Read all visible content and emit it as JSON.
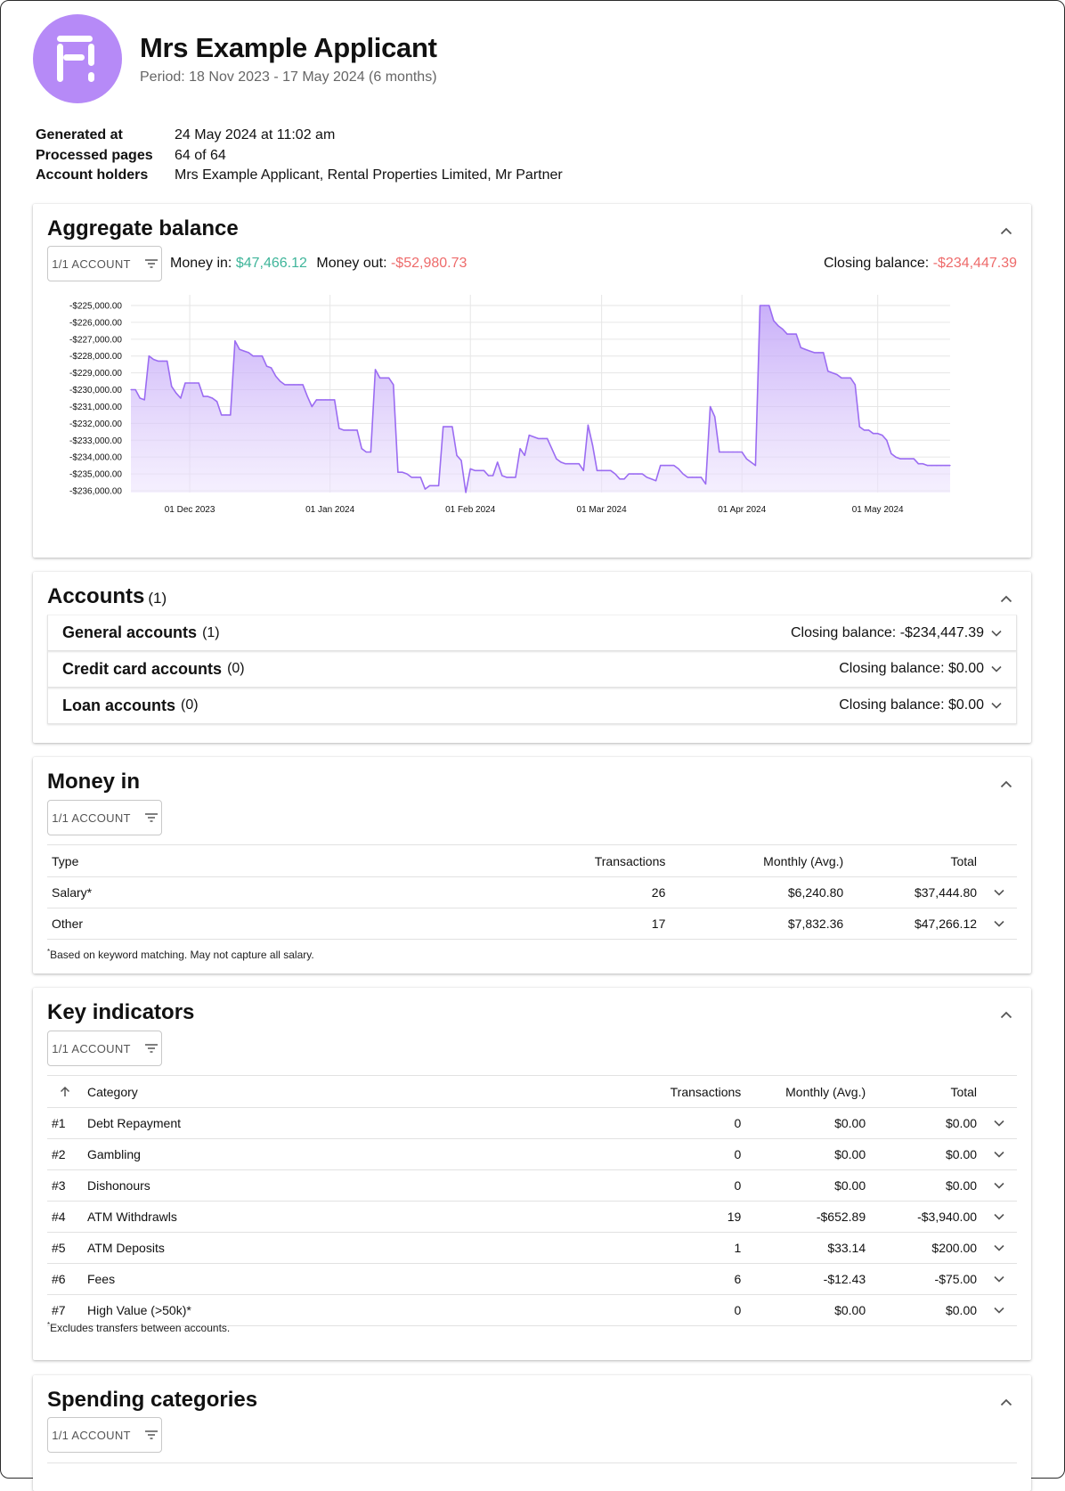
{
  "header": {
    "name": "Mrs Example Applicant",
    "period": "Period: 18 Nov 2023 - 17 May 2024 (6 months)"
  },
  "meta": [
    {
      "key": "Generated at",
      "value": "24 May 2024 at 11:02 am"
    },
    {
      "key": "Processed pages",
      "value": "64 of 64"
    },
    {
      "key": "Account holders",
      "value": "Mrs Example Applicant, Rental Properties Limited, Mr Partner"
    }
  ],
  "aggregate": {
    "title": "Aggregate balance",
    "filter_label": "1/1 ACCOUNT",
    "money_in_label": "Money in:",
    "money_in_value": "$47,466.12",
    "money_out_label": "Money out:",
    "money_out_value": "-$52,980.73",
    "closing_label": "Closing balance:",
    "closing_value": "-$234,447.39"
  },
  "chart_data": {
    "type": "area",
    "title": "",
    "xlabel": "",
    "ylabel": "",
    "ylim": [
      -236000,
      -225000
    ],
    "grid": true,
    "color": "#9b6cf2",
    "x_ticks": [
      {
        "date": "2023-12-01",
        "label": "01 Dec 2023"
      },
      {
        "date": "2024-01-01",
        "label": "01 Jan 2024"
      },
      {
        "date": "2024-02-01",
        "label": "01 Feb 2024"
      },
      {
        "date": "2024-03-01",
        "label": "01 Mar 2024"
      },
      {
        "date": "2024-04-01",
        "label": "01 Apr 2024"
      },
      {
        "date": "2024-05-01",
        "label": "01 May 2024"
      }
    ],
    "y_ticks": [
      "-$225,000.00",
      "-$226,000.00",
      "-$227,000.00",
      "-$228,000.00",
      "-$229,000.00",
      "-$230,000.00",
      "-$231,000.00",
      "-$232,000.00",
      "-$233,000.00",
      "-$234,000.00",
      "-$235,000.00",
      "-$236,000.00"
    ],
    "y_tick_values": [
      -225000,
      -226000,
      -227000,
      -228000,
      -229000,
      -230000,
      -231000,
      -232000,
      -233000,
      -234000,
      -235000,
      -236000
    ],
    "x_range": [
      "2023-11-18",
      "2024-05-17"
    ],
    "points": [
      [
        "2023-11-18",
        -230000
      ],
      [
        "2023-11-19",
        -230000
      ],
      [
        "2023-11-20",
        -230500
      ],
      [
        "2023-11-21",
        -230600
      ],
      [
        "2023-11-22",
        -228000
      ],
      [
        "2023-11-23",
        -228200
      ],
      [
        "2023-11-24",
        -228300
      ],
      [
        "2023-11-25",
        -228300
      ],
      [
        "2023-11-26",
        -228300
      ],
      [
        "2023-11-27",
        -229800
      ],
      [
        "2023-11-28",
        -230200
      ],
      [
        "2023-11-29",
        -230500
      ],
      [
        "2023-11-30",
        -229600
      ],
      [
        "2023-12-01",
        -229600
      ],
      [
        "2023-12-02",
        -229600
      ],
      [
        "2023-12-03",
        -229600
      ],
      [
        "2023-12-04",
        -230400
      ],
      [
        "2023-12-05",
        -230400
      ],
      [
        "2023-12-06",
        -230500
      ],
      [
        "2023-12-07",
        -230700
      ],
      [
        "2023-12-08",
        -231500
      ],
      [
        "2023-12-09",
        -231500
      ],
      [
        "2023-12-10",
        -231500
      ],
      [
        "2023-12-11",
        -227100
      ],
      [
        "2023-12-12",
        -227600
      ],
      [
        "2023-12-13",
        -227700
      ],
      [
        "2023-12-14",
        -227800
      ],
      [
        "2023-12-15",
        -228000
      ],
      [
        "2023-12-16",
        -228000
      ],
      [
        "2023-12-17",
        -228000
      ],
      [
        "2023-12-18",
        -228600
      ],
      [
        "2023-12-19",
        -228700
      ],
      [
        "2023-12-20",
        -229200
      ],
      [
        "2023-12-21",
        -229500
      ],
      [
        "2023-12-22",
        -229700
      ],
      [
        "2023-12-23",
        -229700
      ],
      [
        "2023-12-24",
        -229700
      ],
      [
        "2023-12-25",
        -229700
      ],
      [
        "2023-12-26",
        -229700
      ],
      [
        "2023-12-27",
        -230400
      ],
      [
        "2023-12-28",
        -231000
      ],
      [
        "2023-12-29",
        -230600
      ],
      [
        "2023-12-30",
        -230600
      ],
      [
        "2023-12-31",
        -230600
      ],
      [
        "2024-01-01",
        -230600
      ],
      [
        "2024-01-02",
        -230600
      ],
      [
        "2024-01-03",
        -232300
      ],
      [
        "2024-01-04",
        -232400
      ],
      [
        "2024-01-05",
        -232400
      ],
      [
        "2024-01-06",
        -232400
      ],
      [
        "2024-01-07",
        -232400
      ],
      [
        "2024-01-08",
        -233500
      ],
      [
        "2024-01-09",
        -233700
      ],
      [
        "2024-01-10",
        -233700
      ],
      [
        "2024-01-11",
        -228800
      ],
      [
        "2024-01-12",
        -229300
      ],
      [
        "2024-01-13",
        -229300
      ],
      [
        "2024-01-14",
        -229300
      ],
      [
        "2024-01-15",
        -229700
      ],
      [
        "2024-01-16",
        -234900
      ],
      [
        "2024-01-17",
        -234900
      ],
      [
        "2024-01-18",
        -235000
      ],
      [
        "2024-01-19",
        -235200
      ],
      [
        "2024-01-20",
        -235200
      ],
      [
        "2024-01-21",
        -235200
      ],
      [
        "2024-01-22",
        -235900
      ],
      [
        "2024-01-23",
        -235700
      ],
      [
        "2024-01-24",
        -235700
      ],
      [
        "2024-01-25",
        -235700
      ],
      [
        "2024-01-26",
        -232200
      ],
      [
        "2024-01-27",
        -232200
      ],
      [
        "2024-01-28",
        -232200
      ],
      [
        "2024-01-29",
        -233900
      ],
      [
        "2024-01-30",
        -234200
      ],
      [
        "2024-01-31",
        -236100
      ],
      [
        "2024-02-01",
        -234700
      ],
      [
        "2024-02-02",
        -234800
      ],
      [
        "2024-02-03",
        -234800
      ],
      [
        "2024-02-04",
        -234800
      ],
      [
        "2024-02-05",
        -235100
      ],
      [
        "2024-02-06",
        -235100
      ],
      [
        "2024-02-07",
        -234300
      ],
      [
        "2024-02-08",
        -235100
      ],
      [
        "2024-02-09",
        -235200
      ],
      [
        "2024-02-10",
        -235200
      ],
      [
        "2024-02-11",
        -235200
      ],
      [
        "2024-02-12",
        -233500
      ],
      [
        "2024-02-13",
        -233900
      ],
      [
        "2024-02-14",
        -232700
      ],
      [
        "2024-02-15",
        -232800
      ],
      [
        "2024-02-16",
        -232900
      ],
      [
        "2024-02-17",
        -232900
      ],
      [
        "2024-02-18",
        -232900
      ],
      [
        "2024-02-19",
        -233500
      ],
      [
        "2024-02-20",
        -234100
      ],
      [
        "2024-02-21",
        -234300
      ],
      [
        "2024-02-22",
        -234400
      ],
      [
        "2024-02-23",
        -234400
      ],
      [
        "2024-02-24",
        -234400
      ],
      [
        "2024-02-25",
        -234400
      ],
      [
        "2024-02-26",
        -234800
      ],
      [
        "2024-02-27",
        -232100
      ],
      [
        "2024-02-28",
        -233300
      ],
      [
        "2024-02-29",
        -234800
      ],
      [
        "2024-03-01",
        -234800
      ],
      [
        "2024-03-02",
        -234800
      ],
      [
        "2024-03-03",
        -234800
      ],
      [
        "2024-03-04",
        -235000
      ],
      [
        "2024-03-05",
        -235300
      ],
      [
        "2024-03-06",
        -235300
      ],
      [
        "2024-03-07",
        -235000
      ],
      [
        "2024-03-08",
        -235000
      ],
      [
        "2024-03-09",
        -235000
      ],
      [
        "2024-03-10",
        -235000
      ],
      [
        "2024-03-11",
        -235200
      ],
      [
        "2024-03-12",
        -235300
      ],
      [
        "2024-03-13",
        -235400
      ],
      [
        "2024-03-14",
        -234500
      ],
      [
        "2024-03-15",
        -234500
      ],
      [
        "2024-03-16",
        -234500
      ],
      [
        "2024-03-17",
        -234500
      ],
      [
        "2024-03-18",
        -234700
      ],
      [
        "2024-03-19",
        -235000
      ],
      [
        "2024-03-20",
        -235200
      ],
      [
        "2024-03-21",
        -235200
      ],
      [
        "2024-03-22",
        -235200
      ],
      [
        "2024-03-23",
        -235200
      ],
      [
        "2024-03-24",
        -235600
      ],
      [
        "2024-03-25",
        -231000
      ],
      [
        "2024-03-26",
        -231600
      ],
      [
        "2024-03-27",
        -233700
      ],
      [
        "2024-03-28",
        -233700
      ],
      [
        "2024-03-29",
        -233700
      ],
      [
        "2024-03-30",
        -233700
      ],
      [
        "2024-03-31",
        -233700
      ],
      [
        "2024-04-01",
        -233700
      ],
      [
        "2024-04-02",
        -234100
      ],
      [
        "2024-04-03",
        -234300
      ],
      [
        "2024-04-04",
        -234500
      ],
      [
        "2024-04-05",
        -225000
      ],
      [
        "2024-04-06",
        -225000
      ],
      [
        "2024-04-07",
        -225000
      ],
      [
        "2024-04-08",
        -225900
      ],
      [
        "2024-04-09",
        -226200
      ],
      [
        "2024-04-10",
        -226400
      ],
      [
        "2024-04-11",
        -226700
      ],
      [
        "2024-04-12",
        -226700
      ],
      [
        "2024-04-13",
        -226700
      ],
      [
        "2024-04-14",
        -227500
      ],
      [
        "2024-04-15",
        -227600
      ],
      [
        "2024-04-16",
        -227700
      ],
      [
        "2024-04-17",
        -227800
      ],
      [
        "2024-04-18",
        -227800
      ],
      [
        "2024-04-19",
        -227800
      ],
      [
        "2024-04-20",
        -228900
      ],
      [
        "2024-04-21",
        -229000
      ],
      [
        "2024-04-22",
        -229100
      ],
      [
        "2024-04-23",
        -229300
      ],
      [
        "2024-04-24",
        -229300
      ],
      [
        "2024-04-25",
        -229300
      ],
      [
        "2024-04-26",
        -229700
      ],
      [
        "2024-04-27",
        -232200
      ],
      [
        "2024-04-28",
        -232400
      ],
      [
        "2024-04-29",
        -232400
      ],
      [
        "2024-04-30",
        -232600
      ],
      [
        "2024-05-01",
        -232600
      ],
      [
        "2024-05-02",
        -232700
      ],
      [
        "2024-05-03",
        -233000
      ],
      [
        "2024-05-04",
        -233800
      ],
      [
        "2024-05-05",
        -234000
      ],
      [
        "2024-05-06",
        -234100
      ],
      [
        "2024-05-07",
        -234100
      ],
      [
        "2024-05-08",
        -234100
      ],
      [
        "2024-05-09",
        -234100
      ],
      [
        "2024-05-10",
        -234400
      ],
      [
        "2024-05-11",
        -234400
      ],
      [
        "2024-05-12",
        -234500
      ],
      [
        "2024-05-13",
        -234500
      ],
      [
        "2024-05-14",
        -234500
      ],
      [
        "2024-05-15",
        -234500
      ],
      [
        "2024-05-16",
        -234500
      ],
      [
        "2024-05-17",
        -234500
      ]
    ]
  },
  "accounts": {
    "title": "Accounts",
    "count": "(1)",
    "rows": [
      {
        "name": "General accounts",
        "count": "(1)",
        "closing": "Closing balance: -$234,447.39"
      },
      {
        "name": "Credit card accounts",
        "count": "(0)",
        "closing": "Closing balance: $0.00"
      },
      {
        "name": "Loan accounts",
        "count": "(0)",
        "closing": "Closing balance: $0.00"
      }
    ]
  },
  "money_in": {
    "title": "Money in",
    "filter_label": "1/1 ACCOUNT",
    "columns": [
      "Type",
      "Transactions",
      "Monthly (Avg.)",
      "Total"
    ],
    "rows": [
      {
        "type": "Salary*",
        "transactions": "26",
        "monthly": "$6,240.80",
        "total": "$37,444.80"
      },
      {
        "type": "Other",
        "transactions": "17",
        "monthly": "$7,832.36",
        "total": "$47,266.12"
      }
    ],
    "footnote_mark": "*",
    "footnote": "Based on keyword matching. May not capture all salary."
  },
  "key_indicators": {
    "title": "Key indicators",
    "filter_label": "1/1 ACCOUNT",
    "columns": [
      "Category",
      "Transactions",
      "Monthly (Avg.)",
      "Total"
    ],
    "rows": [
      {
        "rank": "#1",
        "category": "Debt Repayment",
        "transactions": "0",
        "monthly": "$0.00",
        "total": "$0.00"
      },
      {
        "rank": "#2",
        "category": "Gambling",
        "transactions": "0",
        "monthly": "$0.00",
        "total": "$0.00"
      },
      {
        "rank": "#3",
        "category": "Dishonours",
        "transactions": "0",
        "monthly": "$0.00",
        "total": "$0.00"
      },
      {
        "rank": "#4",
        "category": "ATM Withdrawls",
        "transactions": "19",
        "monthly": "-$652.89",
        "total": "-$3,940.00"
      },
      {
        "rank": "#5",
        "category": "ATM Deposits",
        "transactions": "1",
        "monthly": "$33.14",
        "total": "$200.00"
      },
      {
        "rank": "#6",
        "category": "Fees",
        "transactions": "6",
        "monthly": "-$12.43",
        "total": "-$75.00"
      },
      {
        "rank": "#7",
        "category": "High Value (>50k)*",
        "transactions": "0",
        "monthly": "$0.00",
        "total": "$0.00"
      }
    ],
    "footnote_mark": "*",
    "footnote": "Excludes transfers between accounts."
  },
  "spending": {
    "title": "Spending categories",
    "filter_label": "1/1 ACCOUNT"
  }
}
